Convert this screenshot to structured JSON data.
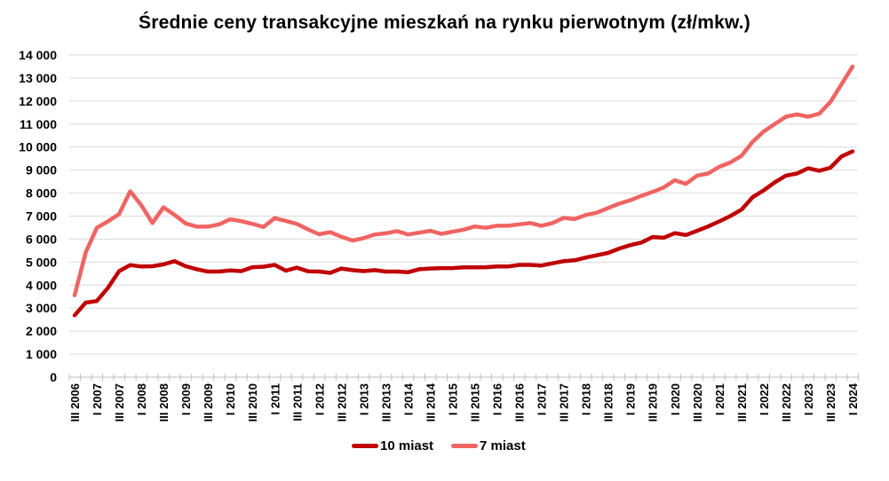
{
  "chart_data": {
    "type": "line",
    "title": "Średnie ceny transakcyjne mieszkań na rynku pierwotnym (zł/mkw.)",
    "xlabel": "",
    "ylabel": "",
    "ylim": [
      0,
      14000
    ],
    "yticks": [
      0,
      1000,
      2000,
      3000,
      4000,
      5000,
      6000,
      7000,
      8000,
      9000,
      10000,
      11000,
      12000,
      13000,
      14000
    ],
    "ytick_labels": [
      "0",
      "1 000",
      "2 000",
      "3 000",
      "4 000",
      "5 000",
      "6 000",
      "7 000",
      "8 000",
      "9 000",
      "10 000",
      "11 000",
      "12 000",
      "13 000",
      "14 000"
    ],
    "grid": "horizontal",
    "legend_position": "bottom",
    "x": [
      "III 2006",
      "IV 2006",
      "I 2007",
      "II 2007",
      "III 2007",
      "IV 2007",
      "I 2008",
      "II 2008",
      "III 2008",
      "IV 2008",
      "I 2009",
      "II 2009",
      "III 2009",
      "IV 2009",
      "I 2010",
      "II 2010",
      "III 2010",
      "IV 2010",
      "I 2011",
      "II 2011",
      "III 2011",
      "IV 2011",
      "I 2012",
      "II 2012",
      "III 2012",
      "IV 2012",
      "I 2013",
      "II 2013",
      "III 2013",
      "IV 2013",
      "I 2014",
      "II 2014",
      "III 2014",
      "IV 2014",
      "I 2015",
      "II 2015",
      "III 2015",
      "IV 2015",
      "I 2016",
      "II 2016",
      "III 2016",
      "IV 2016",
      "I 2017",
      "II 2017",
      "III 2017",
      "IV 2017",
      "I 2018",
      "II 2018",
      "III 2018",
      "IV 2018",
      "I 2019",
      "II 2019",
      "III 2019",
      "IV 2019",
      "I 2020",
      "II 2020",
      "III 2020",
      "IV 2020",
      "I 2021",
      "II 2021",
      "III 2021",
      "IV 2021",
      "I 2022",
      "II 2022",
      "III 2022",
      "IV 2022",
      "I 2023",
      "II 2023",
      "III 2023",
      "IV 2023",
      "I 2024"
    ],
    "xtick_labels_shown": [
      "III 2006",
      "I 2007",
      "III 2007",
      "I 2008",
      "III 2008",
      "I 2009",
      "III 2009",
      "I 2010",
      "III 2010",
      "I 2011",
      "III 2011",
      "I 2012",
      "III 2012",
      "I 2013",
      "III 2013",
      "I 2014",
      "III 2014",
      "I 2015",
      "III 2015",
      "I 2016",
      "III 2016",
      "I 2017",
      "III 2017",
      "I 2018",
      "III 2018",
      "I 2019",
      "III 2019",
      "I 2020",
      "III 2020",
      "I 2021",
      "III 2021",
      "I 2022",
      "III 2022",
      "I 2023",
      "III 2023",
      "I 2024"
    ],
    "series": [
      {
        "name": "10 miast",
        "color": "#C00000",
        "values": [
          2690,
          3240,
          3310,
          3880,
          4610,
          4870,
          4810,
          4820,
          4900,
          5040,
          4820,
          4690,
          4590,
          4590,
          4640,
          4610,
          4780,
          4800,
          4880,
          4630,
          4760,
          4600,
          4590,
          4530,
          4720,
          4650,
          4610,
          4650,
          4590,
          4590,
          4560,
          4690,
          4720,
          4740,
          4740,
          4770,
          4770,
          4780,
          4810,
          4810,
          4880,
          4880,
          4850,
          4950,
          5040,
          5080,
          5200,
          5300,
          5400,
          5590,
          5740,
          5850,
          6090,
          6060,
          6260,
          6180,
          6360,
          6550,
          6770,
          7000,
          7280,
          7820,
          8120,
          8470,
          8760,
          8850,
          9080,
          8970,
          9100,
          9590,
          9810
        ]
      },
      {
        "name": "7 miast",
        "color": "#F06462",
        "values": [
          3560,
          5420,
          6490,
          6770,
          7090,
          8080,
          7470,
          6700,
          7380,
          7050,
          6680,
          6540,
          6540,
          6640,
          6860,
          6780,
          6660,
          6530,
          6910,
          6790,
          6660,
          6420,
          6210,
          6300,
          6100,
          5940,
          6040,
          6200,
          6250,
          6350,
          6200,
          6280,
          6360,
          6230,
          6320,
          6410,
          6550,
          6490,
          6580,
          6580,
          6640,
          6700,
          6580,
          6700,
          6920,
          6870,
          7050,
          7150,
          7350,
          7540,
          7690,
          7880,
          8050,
          8240,
          8560,
          8400,
          8760,
          8850,
          9140,
          9330,
          9620,
          10230,
          10680,
          11000,
          11320,
          11420,
          11320,
          11450,
          11960,
          12730,
          13500
        ]
      }
    ]
  },
  "legend": {
    "items": [
      {
        "label": "10 miast",
        "color": "#C00000"
      },
      {
        "label": "7 miast",
        "color": "#F06462"
      }
    ]
  }
}
